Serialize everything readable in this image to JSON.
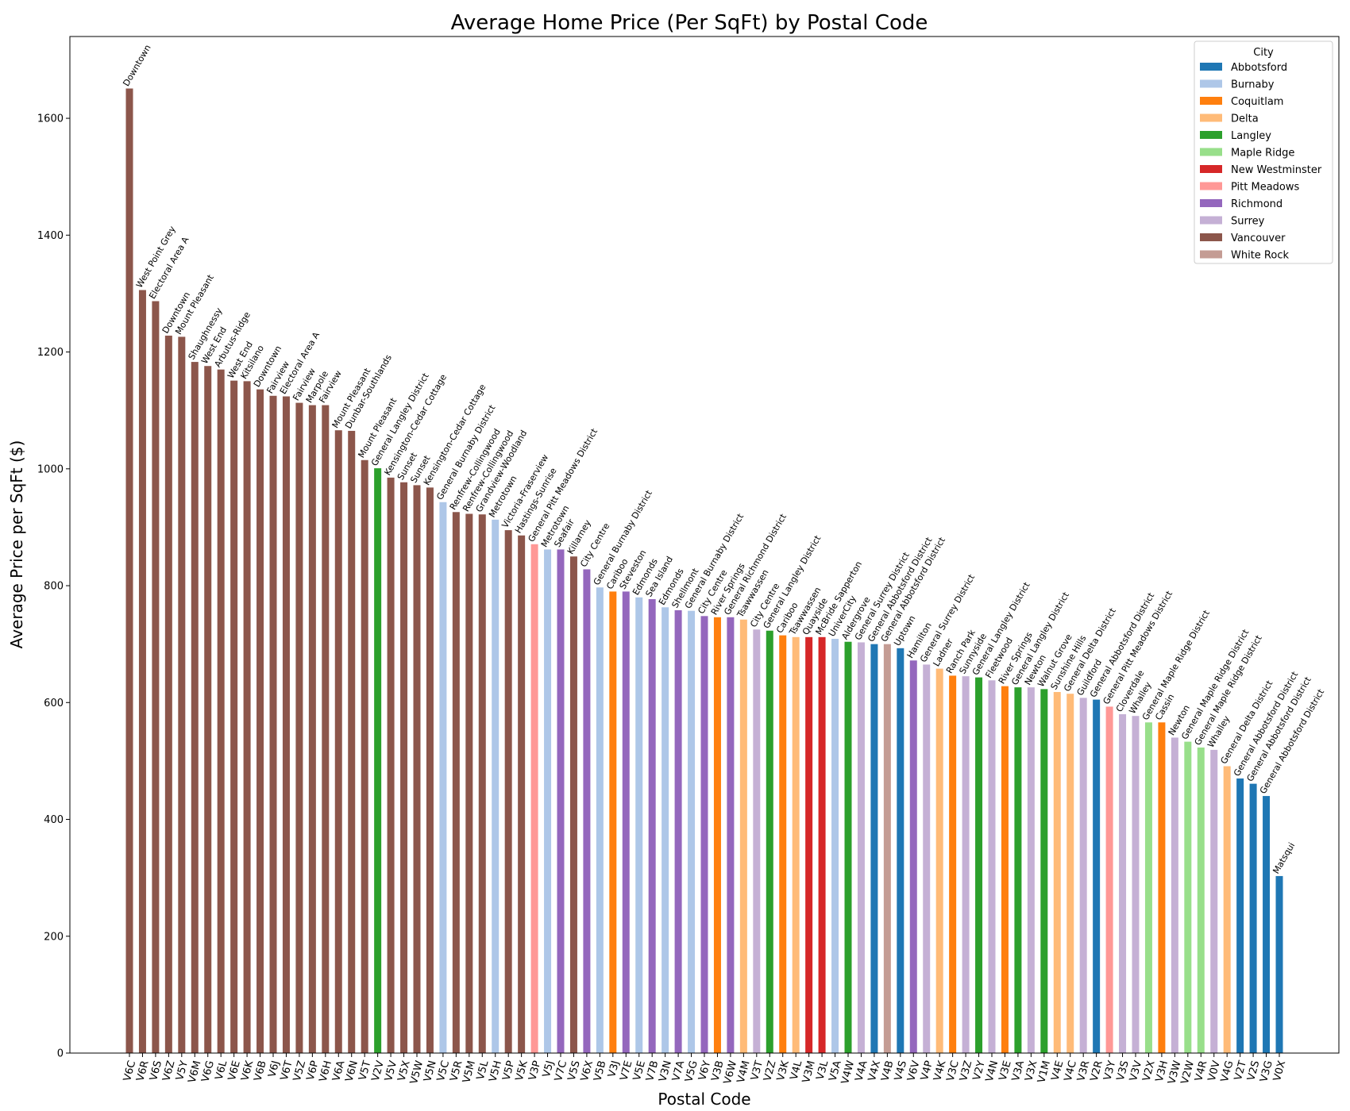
{
  "chart_data": {
    "type": "bar",
    "title": "Average Home Price (Per SqFt) by Postal Code",
    "xlabel": "Postal Code",
    "ylabel": "Average Price per SqFt ($)",
    "ylim": [
      0,
      1740
    ],
    "yticks": [
      0,
      200,
      400,
      600,
      800,
      1000,
      1200,
      1400,
      1600
    ],
    "grid": false,
    "legend": {
      "title": "City",
      "placement": "top-right",
      "entries": [
        {
          "name": "Abbotsford",
          "color": "#1f77b4"
        },
        {
          "name": "Burnaby",
          "color": "#aec7e8"
        },
        {
          "name": "Coquitlam",
          "color": "#ff7f0e"
        },
        {
          "name": "Delta",
          "color": "#ffbb78"
        },
        {
          "name": "Langley",
          "color": "#2ca02c"
        },
        {
          "name": "Maple Ridge",
          "color": "#98df8a"
        },
        {
          "name": "New Westminster",
          "color": "#d62728"
        },
        {
          "name": "Pitt Meadows",
          "color": "#ff9896"
        },
        {
          "name": "Richmond",
          "color": "#9467bd"
        },
        {
          "name": "Surrey",
          "color": "#c5b0d5"
        },
        {
          "name": "Vancouver",
          "color": "#8c564b"
        },
        {
          "name": "White Rock",
          "color": "#c49c94"
        }
      ]
    },
    "bars": [
      {
        "code": "V6C",
        "label": "Downtown",
        "city": "Vancouver",
        "value": 1651
      },
      {
        "code": "V6R",
        "label": "West Point Grey",
        "city": "Vancouver",
        "value": 1306
      },
      {
        "code": "V6S",
        "label": "Electoral Area A",
        "city": "Vancouver",
        "value": 1287
      },
      {
        "code": "V6Z",
        "label": "Downtown",
        "city": "Vancouver",
        "value": 1228
      },
      {
        "code": "V5Y",
        "label": "Mount Pleasant",
        "city": "Vancouver",
        "value": 1226
      },
      {
        "code": "V6M",
        "label": "Shaughnessy",
        "city": "Vancouver",
        "value": 1183
      },
      {
        "code": "V6G",
        "label": "West End",
        "city": "Vancouver",
        "value": 1176
      },
      {
        "code": "V6L",
        "label": "Arbutus-Ridge",
        "city": "Vancouver",
        "value": 1170
      },
      {
        "code": "V6E",
        "label": "West End",
        "city": "Vancouver",
        "value": 1151
      },
      {
        "code": "V6K",
        "label": "Kitsilano",
        "city": "Vancouver",
        "value": 1150
      },
      {
        "code": "V6B",
        "label": "Downtown",
        "city": "Vancouver",
        "value": 1136
      },
      {
        "code": "V6J",
        "label": "Fairview",
        "city": "Vancouver",
        "value": 1125
      },
      {
        "code": "V6T",
        "label": "Electoral Area A",
        "city": "Vancouver",
        "value": 1124
      },
      {
        "code": "V5Z",
        "label": "Fairview",
        "city": "Vancouver",
        "value": 1113
      },
      {
        "code": "V6P",
        "label": "Marpole",
        "city": "Vancouver",
        "value": 1109
      },
      {
        "code": "V6H",
        "label": "Fairview",
        "city": "Vancouver",
        "value": 1109
      },
      {
        "code": "V6A",
        "label": "Mount Pleasant",
        "city": "Vancouver",
        "value": 1066
      },
      {
        "code": "V6N",
        "label": "Dunbar-Southlands",
        "city": "Vancouver",
        "value": 1065
      },
      {
        "code": "V5T",
        "label": "Mount Pleasant",
        "city": "Vancouver",
        "value": 1015
      },
      {
        "code": "V2V",
        "label": "General Langley District",
        "city": "Langley",
        "value": 1001
      },
      {
        "code": "V5V",
        "label": "Kensington-Cedar Cottage",
        "city": "Vancouver",
        "value": 985
      },
      {
        "code": "V5X",
        "label": "Sunset",
        "city": "Vancouver",
        "value": 977
      },
      {
        "code": "V5W",
        "label": "Sunset",
        "city": "Vancouver",
        "value": 972
      },
      {
        "code": "V5N",
        "label": "Kensington-Cedar Cottage",
        "city": "Vancouver",
        "value": 968
      },
      {
        "code": "V5C",
        "label": "General Burnaby District",
        "city": "Burnaby",
        "value": 943
      },
      {
        "code": "V5R",
        "label": "Renfrew-Collingwood",
        "city": "Vancouver",
        "value": 926
      },
      {
        "code": "V5M",
        "label": "Renfrew-Collingwood",
        "city": "Vancouver",
        "value": 923
      },
      {
        "code": "V5L",
        "label": "Grandview-Woodland",
        "city": "Vancouver",
        "value": 922
      },
      {
        "code": "V5H",
        "label": "Metrotown",
        "city": "Burnaby",
        "value": 913
      },
      {
        "code": "V5P",
        "label": "Victoria-Fraserview",
        "city": "Vancouver",
        "value": 895
      },
      {
        "code": "V5K",
        "label": "Hastings-Sunrise",
        "city": "Vancouver",
        "value": 886
      },
      {
        "code": "V3P",
        "label": "General Pitt Meadows District",
        "city": "Pitt Meadows",
        "value": 871
      },
      {
        "code": "V5J",
        "label": "Metrotown",
        "city": "Burnaby",
        "value": 862
      },
      {
        "code": "V7C",
        "label": "Seafair",
        "city": "Richmond",
        "value": 862
      },
      {
        "code": "V5S",
        "label": "Killarney",
        "city": "Vancouver",
        "value": 850
      },
      {
        "code": "V6X",
        "label": "City Centre",
        "city": "Richmond",
        "value": 828
      },
      {
        "code": "V5B",
        "label": "General Burnaby District",
        "city": "Burnaby",
        "value": 797
      },
      {
        "code": "V3J",
        "label": "Cariboo",
        "city": "Coquitlam",
        "value": 790
      },
      {
        "code": "V7E",
        "label": "Steveston",
        "city": "Richmond",
        "value": 790
      },
      {
        "code": "V5E",
        "label": "Edmonds",
        "city": "Burnaby",
        "value": 780
      },
      {
        "code": "V7B",
        "label": "Sea Island",
        "city": "Richmond",
        "value": 777
      },
      {
        "code": "V3N",
        "label": "Edmonds",
        "city": "Burnaby",
        "value": 763
      },
      {
        "code": "V7A",
        "label": "Shellmont",
        "city": "Richmond",
        "value": 758
      },
      {
        "code": "V5G",
        "label": "General Burnaby District",
        "city": "Burnaby",
        "value": 757
      },
      {
        "code": "V6Y",
        "label": "City Centre",
        "city": "Richmond",
        "value": 748
      },
      {
        "code": "V3B",
        "label": "River Springs",
        "city": "Coquitlam",
        "value": 746
      },
      {
        "code": "V6W",
        "label": "General Richmond District",
        "city": "Richmond",
        "value": 746
      },
      {
        "code": "V4M",
        "label": "Tsawwassen",
        "city": "Delta",
        "value": 742
      },
      {
        "code": "V3T",
        "label": "City Centre",
        "city": "Surrey",
        "value": 725
      },
      {
        "code": "V2Z",
        "label": "General Langley District",
        "city": "Langley",
        "value": 723
      },
      {
        "code": "V3K",
        "label": "Cariboo",
        "city": "Coquitlam",
        "value": 715
      },
      {
        "code": "V4L",
        "label": "Tsawwassen",
        "city": "Delta",
        "value": 712
      },
      {
        "code": "V3M",
        "label": "Quayside",
        "city": "New Westminster",
        "value": 712
      },
      {
        "code": "V3L",
        "label": "McBride Sapperton",
        "city": "New Westminster",
        "value": 712
      },
      {
        "code": "V5A",
        "label": "UniverCity",
        "city": "Burnaby",
        "value": 709
      },
      {
        "code": "V4W",
        "label": "Aldergrove",
        "city": "Langley",
        "value": 704
      },
      {
        "code": "V4A",
        "label": "General Surrey District",
        "city": "Surrey",
        "value": 703
      },
      {
        "code": "V4X",
        "label": "General Abbotsford District",
        "city": "Abbotsford",
        "value": 700
      },
      {
        "code": "V4B",
        "label": "General Abbotsford District",
        "city": "White Rock",
        "value": 700
      },
      {
        "code": "V4S",
        "label": "Uptown",
        "city": "Abbotsford",
        "value": 693
      },
      {
        "code": "V6V",
        "label": "Hamilton",
        "city": "Richmond",
        "value": 672
      },
      {
        "code": "V4P",
        "label": "General Surrey District",
        "city": "Surrey",
        "value": 665
      },
      {
        "code": "V4K",
        "label": "Ladner",
        "city": "Delta",
        "value": 658
      },
      {
        "code": "V3C",
        "label": "Ranch Park",
        "city": "Coquitlam",
        "value": 646
      },
      {
        "code": "V3Z",
        "label": "Sunnyside",
        "city": "Surrey",
        "value": 645
      },
      {
        "code": "V2Y",
        "label": "General Langley District",
        "city": "Langley",
        "value": 643
      },
      {
        "code": "V4N",
        "label": "Fleetwood",
        "city": "Surrey",
        "value": 638
      },
      {
        "code": "V3E",
        "label": "River Springs",
        "city": "Coquitlam",
        "value": 628
      },
      {
        "code": "V3A",
        "label": "General Langley District",
        "city": "Langley",
        "value": 626
      },
      {
        "code": "V3X",
        "label": "Newton",
        "city": "Surrey",
        "value": 626
      },
      {
        "code": "V1M",
        "label": "Walnut Grove",
        "city": "Langley",
        "value": 623
      },
      {
        "code": "V4E",
        "label": "Sunshine Hills",
        "city": "Delta",
        "value": 618
      },
      {
        "code": "V4C",
        "label": "General Delta District",
        "city": "Delta",
        "value": 615
      },
      {
        "code": "V3R",
        "label": "Guildford",
        "city": "Surrey",
        "value": 608
      },
      {
        "code": "V2R",
        "label": "General Abbotsford District",
        "city": "Abbotsford",
        "value": 605
      },
      {
        "code": "V3Y",
        "label": "General Pitt Meadows District",
        "city": "Pitt Meadows",
        "value": 593
      },
      {
        "code": "V3S",
        "label": "Cloverdale",
        "city": "Surrey",
        "value": 580
      },
      {
        "code": "V3V",
        "label": "Whalley",
        "city": "Surrey",
        "value": 577
      },
      {
        "code": "V2X",
        "label": "General Maple Ridge District",
        "city": "Maple Ridge",
        "value": 566
      },
      {
        "code": "V3H",
        "label": "Cassin",
        "city": "Coquitlam",
        "value": 566
      },
      {
        "code": "V3W",
        "label": "Newton",
        "city": "Surrey",
        "value": 540
      },
      {
        "code": "V2W",
        "label": "General Maple Ridge District",
        "city": "Maple Ridge",
        "value": 533
      },
      {
        "code": "V4R",
        "label": "General Maple Ridge District",
        "city": "Maple Ridge",
        "value": 523
      },
      {
        "code": "V0V",
        "label": "Whalley",
        "city": "Surrey",
        "value": 519
      },
      {
        "code": "V4G",
        "label": "General Delta District",
        "city": "Delta",
        "value": 491
      },
      {
        "code": "V2T",
        "label": "General Abbotsford District",
        "city": "Abbotsford",
        "value": 470
      },
      {
        "code": "V2S",
        "label": "General Abbotsford District",
        "city": "Abbotsford",
        "value": 461
      },
      {
        "code": "V3G",
        "label": "General Abbotsford District",
        "city": "Abbotsford",
        "value": 440
      },
      {
        "code": "V0X",
        "label": "Matsqui",
        "city": "Abbotsford",
        "value": 303
      }
    ]
  }
}
